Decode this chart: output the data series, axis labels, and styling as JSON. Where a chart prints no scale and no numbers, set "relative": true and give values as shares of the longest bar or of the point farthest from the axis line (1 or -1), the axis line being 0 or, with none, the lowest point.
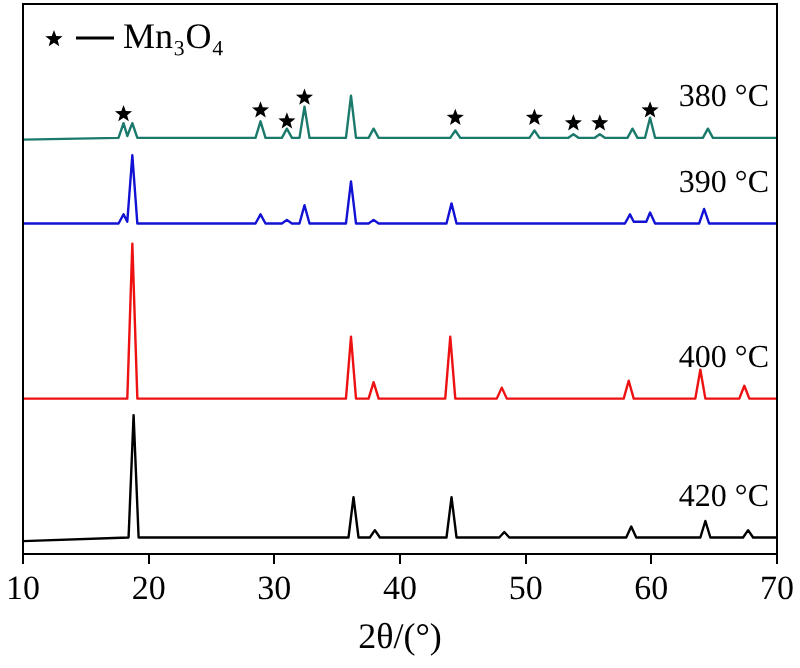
{
  "chart_data": {
    "type": "line",
    "relative": true,
    "xlabel": "2θ/(°)",
    "xlim": [
      10,
      70
    ],
    "xticks": [
      10,
      20,
      30,
      40,
      50,
      60,
      70
    ],
    "tick_labels": "x",
    "grid": false,
    "legend": "top left",
    "marker": "none",
    "line_style": "solid",
    "series": [
      {
        "name": "380 °C",
        "color": "#1b7a6c",
        "x": [
          10,
          17.6,
          18.0,
          18.3,
          18.7,
          19.1,
          28.5,
          28.9,
          29.3,
          30.6,
          31.0,
          31.4,
          32.0,
          32.4,
          32.8,
          35.7,
          36.1,
          36.5,
          37.5,
          37.9,
          38.3,
          44.0,
          44.4,
          44.8,
          50.3,
          50.7,
          51.1,
          53.4,
          53.8,
          54.2,
          55.5,
          55.9,
          56.3,
          58.1,
          58.5,
          58.9,
          59.5,
          59.9,
          60.3,
          64.1,
          64.5,
          64.9,
          70
        ],
        "values": [
          0.904,
          0.908,
          0.94,
          0.912,
          0.94,
          0.908,
          0.908,
          0.944,
          0.908,
          0.908,
          0.928,
          0.908,
          0.908,
          0.976,
          0.908,
          0.908,
          1.0,
          0.908,
          0.908,
          0.928,
          0.908,
          0.908,
          0.924,
          0.908,
          0.908,
          0.924,
          0.908,
          0.908,
          0.916,
          0.908,
          0.908,
          0.916,
          0.908,
          0.908,
          0.928,
          0.908,
          0.908,
          0.952,
          0.908,
          0.908,
          0.928,
          0.908,
          0.908
        ]
      },
      {
        "name": "390 °C",
        "color": "#1212d4",
        "x": [
          10,
          17.6,
          18.0,
          18.3,
          18.7,
          19.1,
          28.5,
          28.9,
          29.3,
          30.6,
          31.0,
          31.4,
          32.0,
          32.4,
          32.8,
          35.7,
          36.1,
          36.5,
          37.5,
          37.9,
          38.3,
          43.7,
          44.1,
          44.5,
          57.9,
          58.3,
          58.6,
          59.6,
          59.9,
          60.3,
          63.8,
          64.2,
          64.6,
          70
        ],
        "values": [
          0.721,
          0.721,
          0.741,
          0.725,
          0.87,
          0.721,
          0.721,
          0.741,
          0.721,
          0.721,
          0.729,
          0.721,
          0.721,
          0.761,
          0.721,
          0.721,
          0.813,
          0.721,
          0.721,
          0.729,
          0.721,
          0.721,
          0.765,
          0.721,
          0.721,
          0.741,
          0.725,
          0.725,
          0.745,
          0.721,
          0.721,
          0.753,
          0.721,
          0.721
        ]
      },
      {
        "name": "400 °C",
        "color": "#ee1111",
        "x": [
          10,
          18.3,
          18.7,
          19.1,
          35.7,
          36.1,
          36.5,
          37.5,
          37.9,
          38.3,
          43.6,
          44.0,
          44.4,
          47.7,
          48.1,
          48.5,
          57.8,
          58.2,
          58.6,
          63.5,
          63.9,
          64.3,
          67.0,
          67.4,
          67.8,
          70
        ],
        "values": [
          0.339,
          0.339,
          0.677,
          0.339,
          0.339,
          0.474,
          0.339,
          0.339,
          0.375,
          0.339,
          0.339,
          0.474,
          0.339,
          0.339,
          0.363,
          0.339,
          0.339,
          0.378,
          0.339,
          0.339,
          0.402,
          0.339,
          0.339,
          0.367,
          0.339,
          0.339
        ]
      },
      {
        "name": "420 °C",
        "color": "#000000",
        "x": [
          10,
          18.4,
          18.8,
          19.2,
          35.9,
          36.3,
          36.7,
          37.6,
          38.0,
          38.4,
          43.7,
          44.1,
          44.5,
          47.9,
          48.3,
          48.7,
          58.0,
          58.4,
          58.8,
          63.9,
          64.3,
          64.7,
          67.3,
          67.7,
          68.1,
          70
        ],
        "values": [
          0.028,
          0.036,
          0.303,
          0.036,
          0.036,
          0.124,
          0.036,
          0.036,
          0.052,
          0.036,
          0.036,
          0.124,
          0.036,
          0.036,
          0.048,
          0.036,
          0.036,
          0.06,
          0.036,
          0.036,
          0.072,
          0.036,
          0.036,
          0.052,
          0.036,
          0.036
        ]
      },
      {
        "name": "Mn₃O₄",
        "type": "scatter",
        "marker": "star",
        "color": "#000000",
        "x": [
          18.0,
          28.9,
          31.0,
          32.4,
          44.4,
          50.7,
          53.8,
          55.9,
          59.9
        ],
        "values": [
          0.96,
          0.968,
          0.944,
          0.996,
          0.952,
          0.952,
          0.94,
          0.94,
          0.968
        ]
      }
    ]
  }
}
